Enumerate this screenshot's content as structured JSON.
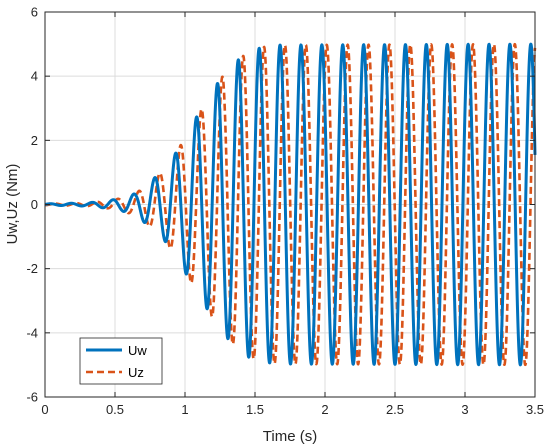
{
  "chart_data": {
    "type": "line",
    "xlabel": "Time (s)",
    "ylabel": "Uw,Uz (Nm)",
    "xlim": [
      0,
      3.5
    ],
    "ylim": [
      -6,
      6
    ],
    "xticks": [
      0,
      0.5,
      1,
      1.5,
      2,
      2.5,
      3,
      3.5
    ],
    "xtick_labels": [
      "0",
      "0.5",
      "1",
      "1.5",
      "2",
      "2.5",
      "3",
      "3.5"
    ],
    "yticks": [
      -6,
      -4,
      -2,
      0,
      2,
      4,
      6
    ],
    "ytick_labels": [
      "-6",
      "-4",
      "-2",
      "0",
      "2",
      "4",
      "6"
    ],
    "grid": true,
    "legend_position": "bottom-left",
    "frequency_hz": 6.7,
    "envelope": {
      "time": [
        0,
        0.3,
        0.45,
        0.55,
        0.65,
        0.75,
        0.85,
        0.95,
        1.05,
        1.15,
        1.25,
        1.35,
        1.45,
        1.55,
        1.65,
        3.5
      ],
      "amplitude": [
        0.02,
        0.05,
        0.12,
        0.2,
        0.35,
        0.7,
        1.1,
        1.7,
        2.5,
        3.2,
        3.9,
        4.4,
        4.75,
        4.9,
        4.97,
        5.0
      ]
    },
    "series": [
      {
        "name": "Uw",
        "color": "#0072BD",
        "style": "solid",
        "phase_lag_s": 0.0
      },
      {
        "name": "Uz",
        "color": "#D95319",
        "style": "dashed",
        "phase_lag_s": 0.035
      }
    ]
  }
}
